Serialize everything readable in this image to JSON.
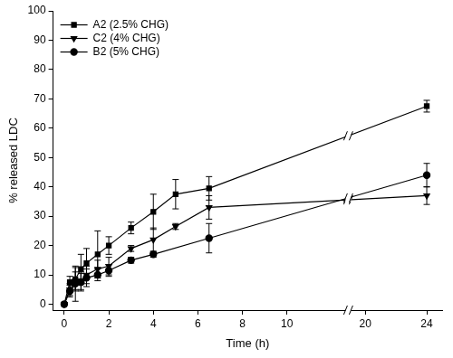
{
  "chart_data": {
    "type": "line",
    "x_label": "Time (h)",
    "y_label": "% released LDC",
    "xlim": [
      -0.5,
      25
    ],
    "xticks": [
      0,
      2,
      4,
      6,
      8,
      10,
      20,
      24
    ],
    "ylim": [
      -2,
      100
    ],
    "yticks": [
      0,
      10,
      20,
      30,
      40,
      50,
      60,
      70,
      80,
      90,
      100
    ],
    "grid": false,
    "legend": "upper left",
    "series": [
      {
        "name": "A2 (2.5% CHG)",
        "color": "#000000",
        "marker": "square",
        "line_style": "solid",
        "x": [
          0,
          0.25,
          0.5,
          0.75,
          1,
          1.5,
          2,
          3,
          4,
          5,
          6.5,
          24
        ],
        "values": [
          0,
          7.5,
          8.5,
          12,
          14,
          17,
          20,
          26,
          31.5,
          37.5,
          39.5,
          67.5
        ],
        "errors": [
          0,
          2,
          4,
          5,
          5,
          8,
          3,
          2,
          6,
          5,
          4,
          2
        ]
      },
      {
        "name": "C2 (4% CHG)",
        "color": "#000000",
        "marker": "triangle-down",
        "line_style": "solid",
        "x": [
          0,
          0.25,
          0.5,
          0.75,
          1,
          1.5,
          2,
          3,
          4,
          5,
          6.5,
          24
        ],
        "values": [
          0,
          5,
          8,
          8,
          10,
          12,
          13,
          19,
          22,
          26.5,
          33,
          37
        ],
        "errors": [
          0,
          2,
          3,
          3,
          3,
          3,
          3,
          1,
          4,
          1,
          4,
          3
        ]
      },
      {
        "name": "B2 (5% CHG)",
        "color": "#000000",
        "marker": "circle",
        "line_style": "solid",
        "x": [
          0,
          0.25,
          0.5,
          0.75,
          1,
          1.5,
          2,
          3,
          4,
          6.5,
          24
        ],
        "values": [
          0,
          4.5,
          7,
          7.5,
          9,
          10,
          11.5,
          15,
          17,
          22.5,
          44
        ],
        "errors": [
          0,
          2,
          6,
          3,
          3,
          2,
          2,
          1,
          1,
          5,
          4
        ]
      }
    ]
  }
}
